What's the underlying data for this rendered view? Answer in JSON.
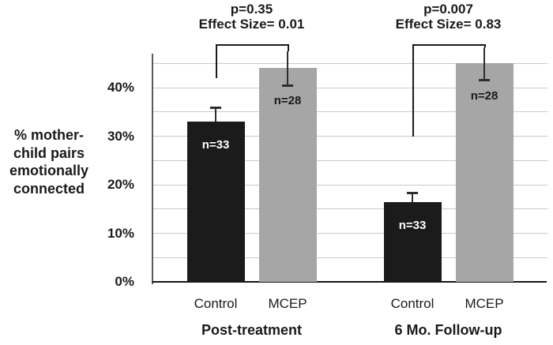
{
  "figure": {
    "background_color": "#ffffff"
  },
  "chart_data": {
    "type": "bar",
    "title": "",
    "ylabel": "% mother-child pairs emotionally connected",
    "ylabel_lines": [
      "% mother-",
      "child pairs",
      "emotionally",
      "connected"
    ],
    "xlabel": "",
    "ylim": [
      0,
      47
    ],
    "grid": true,
    "gridlines_pct": [
      5,
      10,
      15,
      20,
      25,
      30,
      35,
      40,
      45
    ],
    "yticks": [
      {
        "value": 0,
        "label": "0%"
      },
      {
        "value": 10,
        "label": "10%"
      },
      {
        "value": 20,
        "label": "20%"
      },
      {
        "value": 30,
        "label": "30%"
      },
      {
        "value": 40,
        "label": "40%"
      }
    ],
    "legend_position": "none",
    "colors": {
      "control_bar": "#1b1b1b",
      "mcep_bar": "#a6a6a6",
      "gridline": "#c9c9c9",
      "y_axis": "#5a5a5a",
      "x_axis": "#141414",
      "annotation_text": "#1a1a1a"
    },
    "groups": [
      {
        "label": "Post-treatment",
        "p_value_label": "p=0.35",
        "effect_size_label": "Effect Size= 0.01",
        "bracket_left_end_pct": 42,
        "bars": [
          {
            "category": "Control",
            "value": 33,
            "error": 3,
            "n_label": "n=33",
            "fill": "control",
            "n_label_color": "#ffffff"
          },
          {
            "category": "MCEP",
            "value": 44,
            "error": 3.5,
            "n_label": "n=28",
            "fill": "mcep",
            "n_label_color": "#1a1a1a"
          }
        ]
      },
      {
        "label": "6 Mo. Follow-up",
        "p_value_label": "p=0.007",
        "effect_size_label": "Effect Size= 0.83",
        "bracket_left_end_pct": 30,
        "bars": [
          {
            "category": "Control",
            "value": 16.5,
            "error": 1.8,
            "n_label": "n=33",
            "fill": "control",
            "n_label_color": "#ffffff"
          },
          {
            "category": "MCEP",
            "value": 45,
            "error": 3.3,
            "n_label": "n=28",
            "fill": "mcep",
            "n_label_color": "#1a1a1a"
          }
        ]
      }
    ]
  }
}
